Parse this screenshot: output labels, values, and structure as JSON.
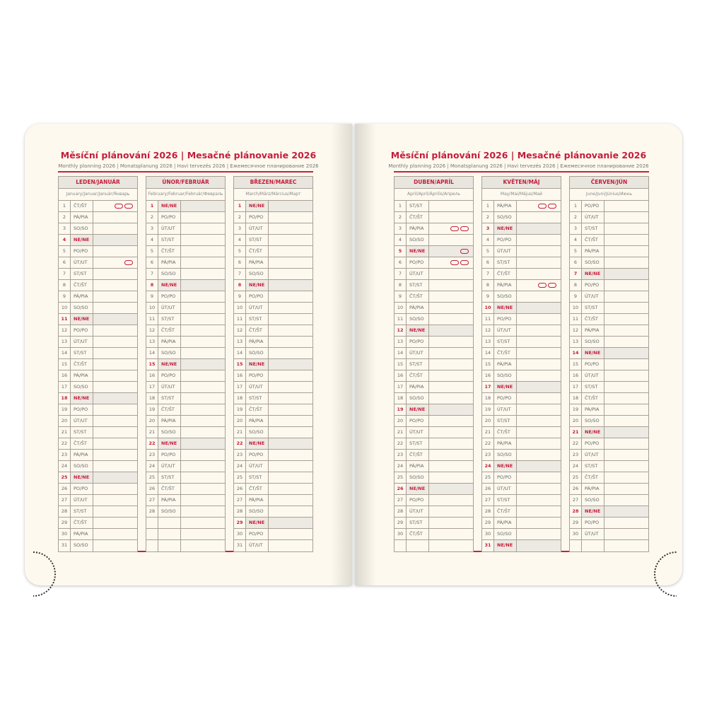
{
  "header": {
    "title": "Měsíční plánování 2026 | Mesačné plánovanie 2026",
    "subtitle": "Monthly planning 2026 | Monatsplanung 2026 | Havi tervezés 2026 | Ежемесячное планирование 2026"
  },
  "weekday_names": [
    "PO/PO",
    "ÚT/UT",
    "ST/ST",
    "ČT/ŠT",
    "PÁ/PIA",
    "SO/SO",
    "NE/NE"
  ],
  "colors": {
    "accent": "#c41e3a",
    "page": "#fdf9ef",
    "header_bg": "#e9e5df",
    "sunday_bg": "#ede9e3"
  },
  "left_page": {
    "months": [
      {
        "name": "LEDEN/JANUÁR",
        "translations": "January/Januar/Január/Январь",
        "start_weekday": "ČT/ŠT",
        "days": 31,
        "holiday_markers": {
          "1": 2,
          "6": 1
        }
      },
      {
        "name": "ÚNOR/FEBRUÁR",
        "translations": "February/Februar/Február/Февраль",
        "start_weekday": "NE/NE",
        "days": 28,
        "holiday_markers": {}
      },
      {
        "name": "BŘEZEN/MAREC",
        "translations": "March/März/Március/Март",
        "start_weekday": "NE/NE",
        "days": 31,
        "holiday_markers": {}
      }
    ]
  },
  "right_page": {
    "months": [
      {
        "name": "DUBEN/APRÍL",
        "translations": "April/April/Április/Апрель",
        "start_weekday": "ST/ST",
        "days": 30,
        "holiday_markers": {
          "3": 2,
          "5": 1,
          "6": 2
        }
      },
      {
        "name": "KVĚTEN/MÁJ",
        "translations": "May/Mai/Május/Май",
        "start_weekday": "PÁ/PIA",
        "days": 31,
        "holiday_markers": {
          "1": 2,
          "8": 2
        }
      },
      {
        "name": "ČERVEN/JÚN",
        "translations": "June/Juni/Június/Июнь",
        "start_weekday": "PO/PO",
        "days": 30,
        "holiday_markers": {}
      }
    ]
  }
}
